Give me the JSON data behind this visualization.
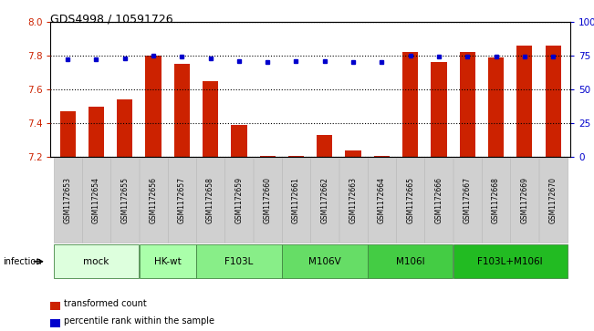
{
  "title": "GDS4998 / 10591726",
  "samples": [
    "GSM1172653",
    "GSM1172654",
    "GSM1172655",
    "GSM1172656",
    "GSM1172657",
    "GSM1172658",
    "GSM1172659",
    "GSM1172660",
    "GSM1172661",
    "GSM1172662",
    "GSM1172663",
    "GSM1172664",
    "GSM1172665",
    "GSM1172666",
    "GSM1172667",
    "GSM1172668",
    "GSM1172669",
    "GSM1172670"
  ],
  "bar_values": [
    7.47,
    7.5,
    7.54,
    7.8,
    7.75,
    7.65,
    7.39,
    7.21,
    7.21,
    7.33,
    7.24,
    7.21,
    7.82,
    7.76,
    7.82,
    7.79,
    7.86,
    7.86
  ],
  "percentile_values": [
    72,
    72,
    73,
    75,
    74,
    73,
    71,
    70,
    71,
    71,
    70,
    70,
    75,
    74,
    74,
    74,
    74,
    74
  ],
  "ymin": 7.2,
  "ymax": 8.0,
  "pmin": 0,
  "pmax": 100,
  "yticks": [
    7.2,
    7.4,
    7.6,
    7.8,
    8.0
  ],
  "pticks": [
    0,
    25,
    50,
    75,
    100
  ],
  "bar_color": "#cc2200",
  "dot_color": "#0000cc",
  "groups": [
    {
      "label": "mock",
      "start": 0,
      "end": 3,
      "color": "#ddffdd"
    },
    {
      "label": "HK-wt",
      "start": 3,
      "end": 5,
      "color": "#aaffaa"
    },
    {
      "label": "F103L",
      "start": 5,
      "end": 8,
      "color": "#88ee88"
    },
    {
      "label": "M106V",
      "start": 8,
      "end": 11,
      "color": "#66dd66"
    },
    {
      "label": "M106I",
      "start": 11,
      "end": 14,
      "color": "#44cc44"
    },
    {
      "label": "F103L+M106I",
      "start": 14,
      "end": 18,
      "color": "#22bb22"
    }
  ],
  "sample_box_color": "#d0d0d0",
  "legend_bar_label": "transformed count",
  "legend_dot_label": "percentile rank within the sample",
  "infection_label": "infection",
  "tick_label_color_left": "#cc2200",
  "tick_label_color_right": "#0000cc"
}
